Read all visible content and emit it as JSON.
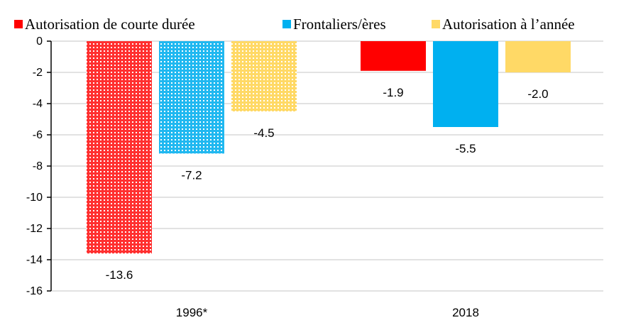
{
  "chart_data": {
    "type": "bar",
    "categories": [
      "1996*",
      "2018"
    ],
    "series": [
      {
        "name": "Autorisation de courte durée",
        "values": [
          -13.6,
          -1.9
        ],
        "color": "#ff0000",
        "labels": [
          "-13.6",
          "-1.9"
        ]
      },
      {
        "name": "Frontaliers/ères",
        "values": [
          -7.2,
          -5.5
        ],
        "color": "#00b0f0",
        "labels": [
          "-7.2",
          "-5.5"
        ]
      },
      {
        "name": "Autorisation à l’année",
        "values": [
          -4.5,
          -2.0
        ],
        "color": "#ffd966",
        "labels": [
          "-4.5",
          "-2.0"
        ]
      }
    ],
    "patterned_category": "1996*",
    "y_ticks": [
      "0",
      "-2",
      "-4",
      "-6",
      "-8",
      "-10",
      "-12",
      "-14",
      "-16"
    ],
    "ylim": [
      -16,
      0
    ],
    "grid": true,
    "legend_position": "top"
  }
}
